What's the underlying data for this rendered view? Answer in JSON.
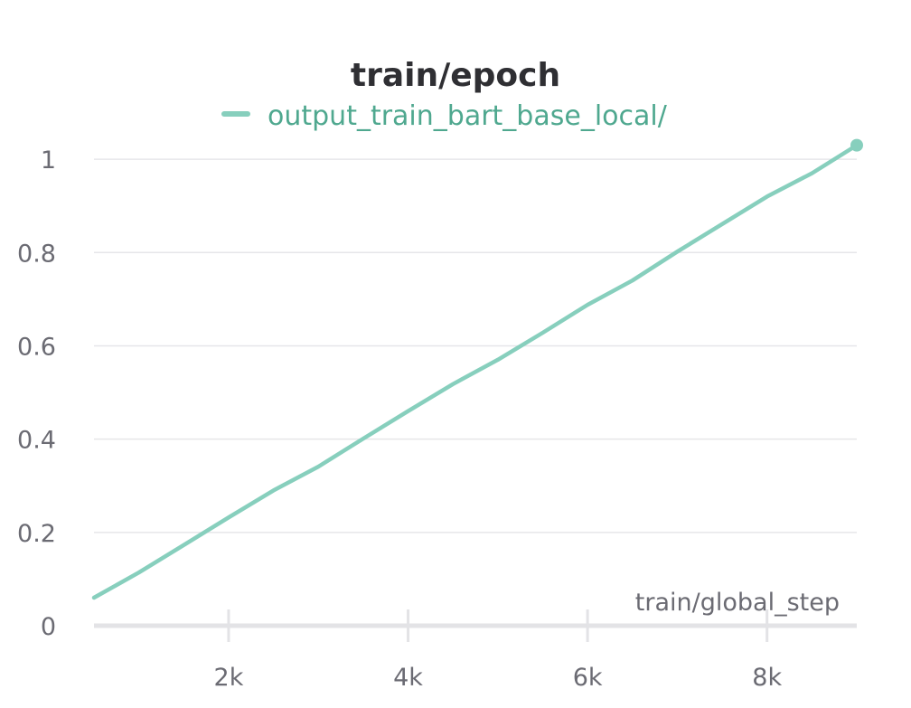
{
  "chart_data": {
    "type": "line",
    "title": "train/epoch",
    "xlabel": "train/global_step",
    "ylabel": "",
    "xlim": [
      500,
      9000
    ],
    "ylim": [
      0,
      1.07
    ],
    "x_ticks": [
      2000,
      4000,
      6000,
      8000
    ],
    "x_tick_labels": [
      "2k",
      "4k",
      "6k",
      "8k"
    ],
    "y_ticks": [
      0,
      0.2,
      0.4,
      0.6,
      0.8,
      1
    ],
    "y_tick_labels": [
      "0",
      "0.2",
      "0.4",
      "0.6",
      "0.8",
      "1"
    ],
    "grid": "horizontal",
    "legend_position": "top-center",
    "series": [
      {
        "name": "output_train_bart_base_local/",
        "color": "#87cfbd",
        "legend_color": "#4fa88f",
        "x": [
          500,
          1000,
          1500,
          2000,
          2500,
          3000,
          3500,
          4000,
          4500,
          5000,
          5500,
          6000,
          6500,
          7000,
          7500,
          8000,
          8500,
          9000
        ],
        "y": [
          0.06,
          0.114,
          0.173,
          0.232,
          0.29,
          0.341,
          0.401,
          0.46,
          0.518,
          0.57,
          0.628,
          0.688,
          0.74,
          0.802,
          0.861,
          0.92,
          0.97,
          1.03
        ]
      }
    ]
  }
}
